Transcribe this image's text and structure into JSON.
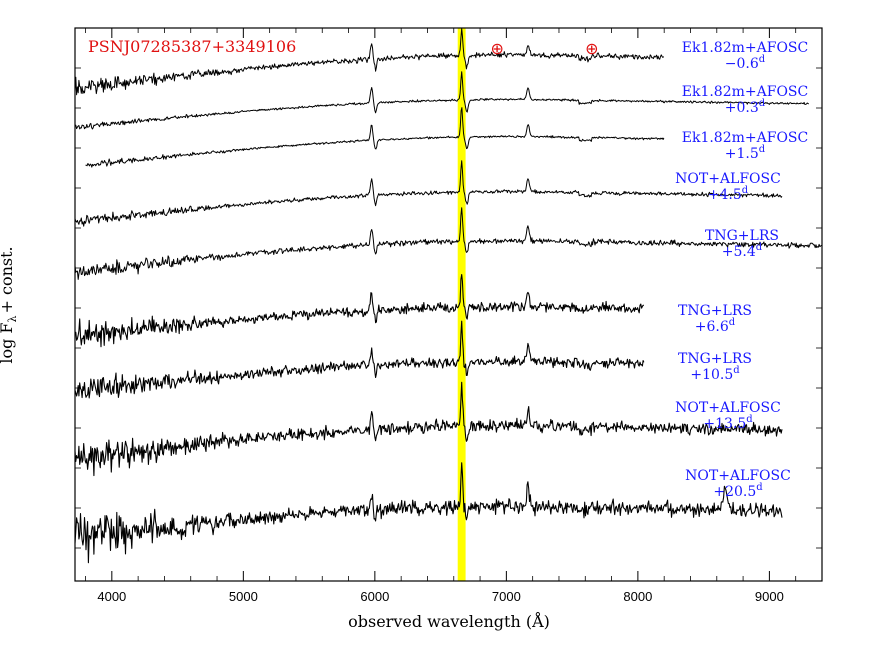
{
  "chart_data": {
    "type": "line",
    "title": "PSNJ07285387+3349106",
    "xlabel": "observed wavelength (Å)",
    "ylabel": "log F",
    "ylabel_subscript": "λ",
    "ylabel_suffix": "+ const.",
    "xlim": [
      3720,
      9400
    ],
    "x_ticks": [
      "4000",
      "5000",
      "6000",
      "7000",
      "8000",
      "9000"
    ],
    "x_tick_values": [
      4000,
      5000,
      6000,
      7000,
      8000,
      9000
    ],
    "highlight_band": {
      "x_range": [
        6630,
        6690
      ],
      "color": "#ffff00"
    },
    "telluric_markers": [
      {
        "symbol": "⊕",
        "x": 6930
      },
      {
        "symbol": "⊕",
        "x": 7650
      }
    ],
    "series": [
      {
        "instrument": "Ek1.82m+AFOSC",
        "epoch": "−0.6",
        "x_range": [
          3720,
          8200
        ],
        "noise": 0.9
      },
      {
        "instrument": "Ek1.82m+AFOSC",
        "epoch": "+0.3",
        "x_range": [
          3720,
          9300
        ],
        "noise": 0.35
      },
      {
        "instrument": "Ek1.82m+AFOSC",
        "epoch": "+1.5",
        "x_range": [
          3800,
          8200
        ],
        "noise": 0.35
      },
      {
        "instrument": "NOT+ALFOSC",
        "epoch": "+4.5",
        "x_range": [
          3720,
          9100
        ],
        "noise": 0.6
      },
      {
        "instrument": "TNG+LRS",
        "epoch": "+5.4",
        "x_range": [
          3720,
          9400
        ],
        "noise": 0.9
      },
      {
        "instrument": "TNG+LRS",
        "epoch": "+6.6",
        "x_range": [
          3720,
          8050
        ],
        "noise": 1.6
      },
      {
        "instrument": "TNG+LRS",
        "epoch": "+10.5",
        "x_range": [
          3720,
          8050
        ],
        "noise": 1.6
      },
      {
        "instrument": "NOT+ALFOSC",
        "epoch": "+13.5",
        "x_range": [
          3720,
          9100
        ],
        "noise": 2.0
      },
      {
        "instrument": "NOT+ALFOSC",
        "epoch": "+20.5",
        "x_range": [
          3720,
          9100
        ],
        "noise": 2.4
      }
    ],
    "epoch_unit": "d"
  }
}
